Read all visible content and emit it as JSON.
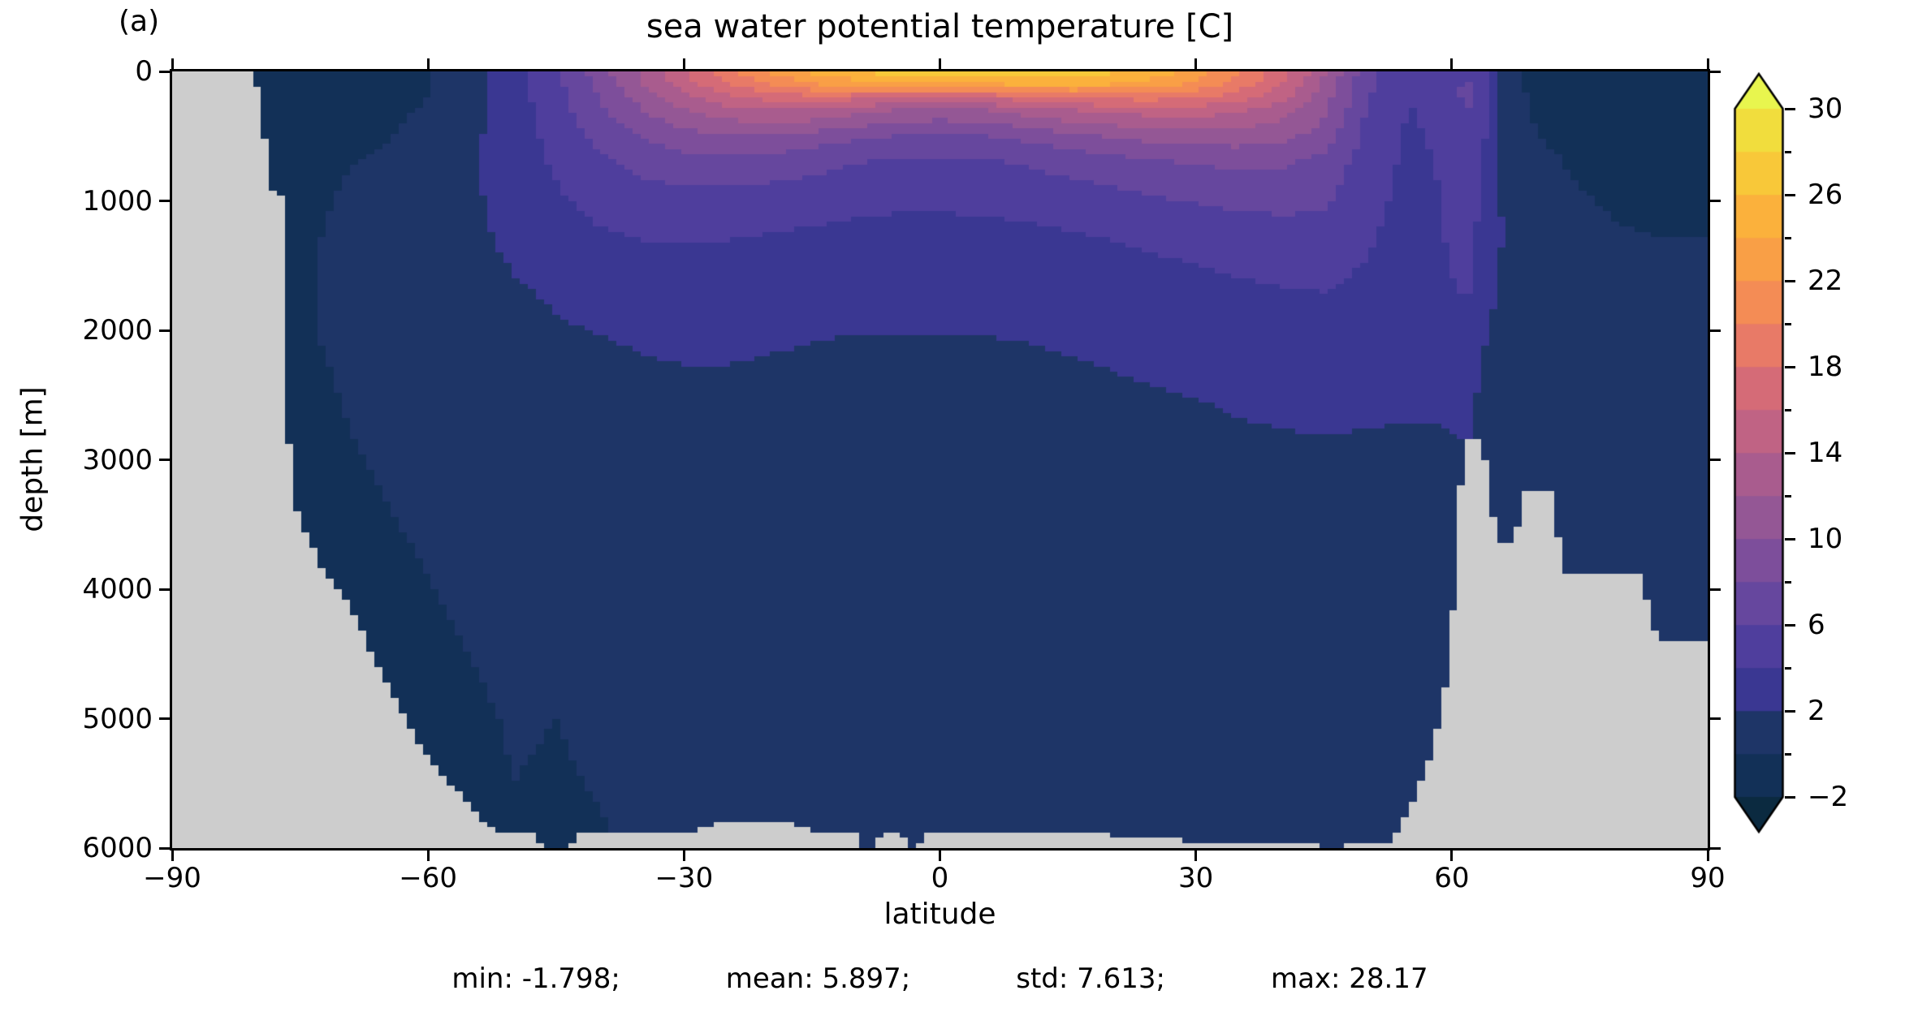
{
  "figure": {
    "panel_label": "(a)",
    "title": "sea water potential temperature [C]",
    "xlabel": "latitude",
    "ylabel": "depth [m]"
  },
  "stats": {
    "segments": [
      "min: -1.798;",
      "mean: 5.897;",
      "std: 7.613;",
      "max: 28.17"
    ]
  },
  "chart_data": {
    "type": "heatmap",
    "title": "sea water potential temperature [C]",
    "xlabel": "latitude",
    "ylabel": "depth [m]",
    "panel_label": "(a)",
    "xlim": [
      -90,
      90
    ],
    "ylim": [
      6000,
      0
    ],
    "y_axis_inverted": true,
    "grid_on": false,
    "xticks": [
      -90,
      -60,
      -30,
      0,
      30,
      60,
      90
    ],
    "xtick_labels": [
      "−90",
      "−60",
      "−30",
      "0",
      "30",
      "60",
      "90"
    ],
    "yticks": [
      0,
      1000,
      2000,
      3000,
      4000,
      5000,
      6000
    ],
    "ytick_labels": [
      "0",
      "1000",
      "2000",
      "3000",
      "4000",
      "5000",
      "6000"
    ],
    "stats_text": [
      "min: -1.798;",
      "mean: 5.897;",
      "std: 7.613;",
      "max: 28.17"
    ],
    "land_color": "#cdcdcd",
    "colorbar": {
      "position": "right",
      "extend": "both",
      "levels": [
        -2,
        0,
        2,
        4,
        6,
        8,
        10,
        12,
        14,
        16,
        18,
        20,
        22,
        24,
        26,
        28,
        30
      ],
      "band_colors": [
        "#123057",
        "#1e3567",
        "#3a3792",
        "#4f3e9d",
        "#66479e",
        "#7d4e9b",
        "#945795",
        "#a95c8e",
        "#c06384",
        "#d56b77",
        "#e87a67",
        "#f48c55",
        "#f99f46",
        "#fbb13c",
        "#f8c839",
        "#f1dd3d"
      ],
      "under_color": "#0b2a40",
      "over_color": "#e8f54e",
      "ticks_major": [
        30,
        26,
        22,
        18,
        14,
        10,
        6,
        2,
        -2
      ],
      "tick_labels": [
        "30",
        "26",
        "22",
        "18",
        "14",
        "10",
        "6",
        "2",
        "−2"
      ],
      "ticks_minor": [
        28,
        24,
        20,
        16,
        12,
        8,
        4,
        0
      ]
    },
    "grid": {
      "lats": [
        -90,
        -85,
        -80,
        -78,
        -75,
        -70,
        -65,
        -60,
        -55,
        -50,
        -45,
        -40,
        -35,
        -30,
        -25,
        -20,
        -15,
        -10,
        -5,
        0,
        5,
        10,
        15,
        20,
        25,
        30,
        35,
        40,
        45,
        50,
        55,
        58,
        60,
        62,
        64,
        66,
        70,
        75,
        80,
        85,
        90
      ],
      "depths": [
        0,
        100,
        200,
        300,
        500,
        700,
        1000,
        1300,
        1700,
        2100,
        2600,
        3100,
        3700,
        4300,
        5000,
        6000
      ],
      "temps": [
        [
          -1.5,
          -1.5,
          -1.5,
          -1.5,
          -1.2,
          -1.0,
          -0.7,
          -0.2,
          1.3,
          3.3,
          5.8,
          9.0,
          12.5,
          16.0,
          19.5,
          22.5,
          24.8,
          26.3,
          27.2,
          27.4,
          27.8,
          28.1,
          27.6,
          26.6,
          25.2,
          23.2,
          20.4,
          17.0,
          12.5,
          6.8,
          4.2,
          4.4,
          5.2,
          5.0,
          4.2,
          0.8,
          -0.8,
          -1.2,
          -1.5,
          -1.6,
          -1.7
        ],
        [
          -1.5,
          -1.5,
          -1.5,
          -1.5,
          -1.3,
          -1.1,
          -0.8,
          -0.2,
          1.2,
          3.1,
          5.5,
          8.6,
          11.8,
          15.0,
          17.8,
          20.0,
          21.8,
          22.8,
          23.3,
          23.0,
          23.4,
          24.4,
          24.5,
          24.0,
          23.0,
          21.5,
          19.0,
          16.0,
          11.5,
          6.6,
          4.2,
          4.5,
          5.6,
          6.3,
          4.6,
          1.0,
          -0.6,
          -1.0,
          -1.3,
          -1.5,
          -1.6
        ],
        [
          -1.4,
          -1.4,
          -1.4,
          -1.4,
          -1.2,
          -0.9,
          -0.6,
          0.0,
          1.3,
          3.1,
          5.3,
          8.0,
          10.8,
          13.3,
          15.3,
          16.8,
          17.3,
          16.8,
          16.0,
          15.6,
          16.0,
          17.3,
          18.3,
          18.8,
          18.8,
          18.3,
          16.8,
          14.8,
          11.0,
          6.2,
          4.0,
          4.5,
          5.6,
          6.4,
          4.6,
          1.0,
          -0.4,
          -0.8,
          -1.1,
          -1.3,
          -1.4
        ],
        [
          -1.3,
          -1.3,
          -1.3,
          -1.3,
          -1.0,
          -0.7,
          -0.4,
          0.2,
          1.4,
          3.1,
          5.1,
          7.5,
          9.9,
          11.8,
          13.2,
          14.0,
          13.8,
          12.8,
          11.9,
          11.4,
          11.9,
          12.9,
          13.9,
          14.6,
          15.0,
          15.0,
          14.3,
          13.0,
          10.5,
          5.9,
          3.9,
          4.4,
          5.4,
          6.0,
          4.4,
          0.8,
          -0.2,
          -0.5,
          -0.7,
          -0.8,
          -0.9
        ],
        [
          -1.0,
          -1.0,
          -1.0,
          -1.0,
          -0.7,
          -0.3,
          -0.1,
          0.5,
          1.6,
          3.0,
          4.7,
          6.5,
          8.0,
          9.2,
          9.8,
          9.8,
          9.2,
          8.4,
          7.9,
          7.7,
          7.9,
          8.5,
          9.3,
          10.1,
          10.7,
          11.1,
          11.1,
          10.6,
          9.2,
          5.4,
          3.7,
          4.2,
          5.0,
          5.2,
          4.0,
          1.0,
          0.0,
          -0.4,
          -0.6,
          -0.7,
          -0.7
        ],
        [
          -0.8,
          -0.8,
          -0.8,
          -0.8,
          -0.5,
          -0.1,
          0.2,
          0.7,
          1.7,
          2.9,
          4.3,
          5.6,
          6.6,
          7.2,
          7.4,
          7.1,
          6.6,
          6.1,
          5.8,
          5.7,
          5.8,
          6.2,
          6.7,
          7.3,
          7.8,
          8.2,
          8.4,
          8.3,
          7.4,
          5.0,
          3.6,
          4.0,
          4.8,
          4.9,
          3.8,
          1.4,
          0.3,
          -0.2,
          -0.4,
          -0.5,
          -0.5
        ],
        [
          -0.5,
          -0.5,
          -0.5,
          -0.5,
          -0.3,
          0.1,
          0.4,
          0.8,
          1.7,
          2.7,
          3.7,
          4.6,
          5.1,
          5.3,
          5.3,
          5.1,
          4.8,
          4.5,
          4.3,
          4.3,
          4.4,
          4.6,
          4.9,
          5.3,
          5.7,
          6.1,
          6.4,
          6.5,
          6.3,
          4.6,
          3.4,
          3.8,
          4.5,
          4.6,
          3.6,
          1.8,
          0.6,
          0.1,
          -0.2,
          -0.3,
          -0.3
        ],
        [
          -0.4,
          -0.4,
          -0.4,
          -0.4,
          -0.2,
          0.2,
          0.4,
          0.7,
          1.5,
          2.4,
          3.1,
          3.7,
          4.0,
          4.1,
          4.0,
          3.8,
          3.6,
          3.4,
          3.3,
          3.3,
          3.4,
          3.5,
          3.7,
          4.0,
          4.3,
          4.6,
          4.9,
          5.1,
          5.2,
          4.2,
          3.2,
          3.6,
          4.3,
          4.4,
          3.4,
          2.0,
          0.9,
          0.4,
          0.1,
          0.0,
          0.0
        ],
        [
          -0.3,
          -0.3,
          -0.3,
          -0.3,
          -0.1,
          0.2,
          0.4,
          0.6,
          1.2,
          1.8,
          2.2,
          2.6,
          2.9,
          3.0,
          2.9,
          2.8,
          2.6,
          2.5,
          2.4,
          2.4,
          2.5,
          2.6,
          2.7,
          2.9,
          3.1,
          3.4,
          3.7,
          3.9,
          4.0,
          3.6,
          3.0,
          3.3,
          3.9,
          4.1,
          3.0,
          1.2,
          1.1,
          0.6,
          0.4,
          0.3,
          0.3
        ],
        [
          -0.3,
          -0.3,
          -0.3,
          -0.3,
          -0.1,
          0.1,
          0.3,
          0.5,
          0.9,
          1.4,
          1.7,
          1.9,
          2.1,
          2.2,
          2.2,
          2.1,
          2.0,
          1.9,
          1.9,
          1.9,
          1.9,
          2.0,
          2.1,
          2.2,
          2.4,
          2.6,
          2.8,
          3.0,
          3.1,
          3.0,
          2.7,
          2.9,
          3.1,
          3.3,
          2.0,
          1.2,
          0.8,
          0.5,
          0.3,
          0.25,
          0.2
        ],
        [
          -0.35,
          -0.35,
          -0.35,
          -0.35,
          -0.2,
          0.0,
          0.2,
          0.35,
          0.6,
          0.95,
          1.2,
          1.35,
          1.5,
          1.6,
          1.6,
          1.5,
          1.5,
          1.4,
          1.4,
          1.4,
          1.5,
          1.5,
          1.6,
          1.7,
          1.8,
          1.9,
          2.1,
          2.2,
          2.3,
          2.2,
          2.1,
          2.1,
          2.3,
          2.4,
          1.2,
          0.6,
          0.4,
          0.3,
          0.25,
          0.2,
          0.2
        ],
        [
          -0.4,
          -0.4,
          -0.4,
          -0.4,
          -0.3,
          -0.1,
          0.05,
          0.2,
          0.4,
          0.6,
          0.8,
          1.0,
          1.1,
          1.1,
          1.1,
          1.1,
          1.0,
          1.0,
          1.0,
          1.0,
          1.1,
          1.1,
          1.2,
          1.2,
          1.3,
          1.4,
          1.5,
          1.6,
          1.6,
          1.6,
          1.6,
          1.6,
          1.6,
          1.6,
          0.8,
          0.2,
          0.1,
          0.15,
          0.2,
          0.2,
          0.2
        ],
        [
          -0.5,
          -0.5,
          -0.5,
          -0.5,
          -0.4,
          -0.25,
          -0.1,
          0.05,
          0.2,
          0.4,
          0.5,
          0.7,
          0.8,
          0.8,
          0.8,
          0.8,
          0.8,
          0.8,
          0.8,
          0.8,
          0.8,
          0.9,
          0.9,
          0.9,
          1.0,
          1.0,
          1.1,
          1.1,
          1.2,
          1.2,
          1.2,
          1.2,
          1.2,
          1.2,
          0.6,
          0.0,
          0.0,
          0.1,
          0.15,
          0.15,
          0.15
        ],
        [
          -0.6,
          -0.6,
          -0.6,
          -0.6,
          -0.5,
          -0.4,
          -0.25,
          -0.1,
          0.05,
          0.2,
          0.35,
          0.5,
          0.6,
          0.6,
          0.6,
          0.6,
          0.6,
          0.6,
          0.6,
          0.6,
          0.6,
          0.7,
          0.7,
          0.7,
          0.7,
          0.8,
          0.8,
          0.8,
          0.9,
          0.9,
          0.9,
          0.9,
          0.9,
          0.9,
          0.9,
          0.9,
          0.9,
          0.8,
          0.8,
          0.8,
          0.8
        ],
        [
          -0.65,
          -0.65,
          -0.65,
          -0.65,
          -0.6,
          -0.5,
          -0.4,
          -0.25,
          -0.1,
          0.05,
          0.0,
          0.1,
          0.3,
          0.4,
          0.45,
          0.5,
          0.5,
          0.5,
          0.5,
          0.5,
          0.5,
          0.55,
          0.6,
          0.6,
          0.6,
          0.65,
          0.7,
          0.7,
          0.7,
          0.75,
          0.75,
          0.75,
          0.75,
          0.75,
          0.75,
          0.75,
          0.75,
          0.75,
          0.75,
          0.75,
          0.75
        ],
        [
          -0.7,
          -0.7,
          -0.7,
          -0.7,
          -0.65,
          -0.6,
          -0.5,
          -0.35,
          -0.2,
          -0.05,
          -0.1,
          -0.05,
          0.05,
          0.1,
          0.3,
          0.4,
          0.45,
          0.45,
          0.45,
          0.45,
          0.5,
          0.5,
          0.5,
          0.5,
          0.55,
          0.55,
          0.6,
          0.6,
          0.6,
          0.65,
          0.65,
          0.65,
          0.65,
          0.65,
          0.65,
          0.65,
          0.65,
          0.7,
          0.7,
          0.7,
          0.7
        ]
      ]
    },
    "seafloor": {
      "lats": [
        -90,
        -80.5,
        -79.5,
        -78.5,
        -77,
        -76.6,
        -76.2,
        -74,
        -72,
        -70,
        -68,
        -66,
        -64,
        -62,
        -60,
        -58,
        -56,
        -54,
        -52,
        -48,
        -46.5,
        -43.5,
        -42.5,
        -30,
        -26,
        -22,
        -18,
        -14,
        -9.5,
        -9,
        -7.5,
        -7,
        -4.5,
        -4,
        -2.5,
        -2,
        20,
        30,
        43.5,
        44.5,
        47,
        47.5,
        53,
        55,
        57,
        59,
        60,
        61,
        61.4,
        63.6,
        64.2,
        64.8,
        65.6,
        67.4,
        68,
        68.4,
        71.6,
        72.2,
        73,
        74,
        82,
        83.2,
        84,
        90
      ],
      "depths": [
        0,
        0,
        250,
        900,
        950,
        1000,
        3250,
        3600,
        3900,
        4050,
        4300,
        4600,
        4850,
        5100,
        5300,
        5450,
        5600,
        5750,
        5880,
        5880,
        6001,
        6001,
        5880,
        5880,
        5810,
        5800,
        5810,
        5880,
        5880,
        6001,
        6001,
        5880,
        5880,
        6001,
        6001,
        5880,
        5900,
        5950,
        5950,
        6001,
        6001,
        5950,
        5950,
        5700,
        5400,
        4900,
        4300,
        3300,
        2860,
        2840,
        3100,
        3400,
        3650,
        3650,
        3450,
        3250,
        3240,
        3500,
        3850,
        3890,
        3890,
        4150,
        4380,
        4380
      ]
    }
  }
}
